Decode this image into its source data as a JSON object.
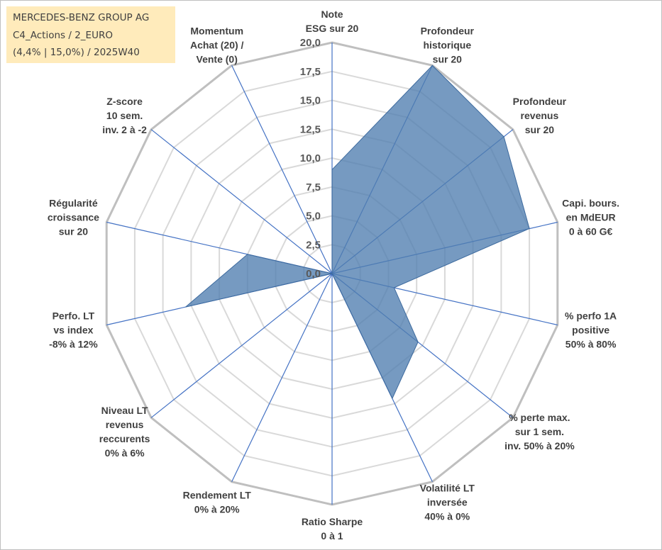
{
  "title": {
    "line1": "MERCEDES-BENZ GROUP AG",
    "line2": "C4_Actions / 2_EURO",
    "line3": "(4,4% | 15,0%) / 2025W40"
  },
  "colors": {
    "fill": "#4f7db0",
    "stroke": "#3d6a9e",
    "axis": "#4472c4",
    "grid": "#d9d9d9",
    "outer_grid": "#bfbfbf"
  },
  "chart_data": {
    "type": "radar",
    "scale_min": 0,
    "scale_max": 20,
    "tick_step": 2.5,
    "tick_labels": [
      "0,0",
      "2,5",
      "5,0",
      "7,5",
      "10,0",
      "12,5",
      "15,0",
      "17,5",
      "20,0"
    ],
    "axes": [
      {
        "label": [
          "Note",
          "ESG sur 20"
        ],
        "value": 9
      },
      {
        "label": [
          "Profondeur",
          "historique",
          "sur 20"
        ],
        "value": 20
      },
      {
        "label": [
          "Profondeur",
          "revenus",
          "sur 20"
        ],
        "value": 19
      },
      {
        "label": [
          "Capi. bours.",
          "en MdEUR",
          "0 à 60 G€"
        ],
        "value": 17.5
      },
      {
        "label": [
          "% perfo 1A",
          "positive",
          "50% à 80%"
        ],
        "value": 5.5
      },
      {
        "label": [
          "% perte max.",
          "sur 1 sem.",
          "inv. 50% à 20%"
        ],
        "value": 9.5
      },
      {
        "label": [
          "Volatilité LT",
          "inversée",
          "40% à 0%"
        ],
        "value": 12
      },
      {
        "label": [
          "Ratio Sharpe",
          "0 à 1"
        ],
        "value": 0
      },
      {
        "label": [
          "Rendement LT",
          "0% à 20%"
        ],
        "value": 0
      },
      {
        "label": [
          "Niveau LT",
          "revenus",
          "reccurents",
          "0% à 6%"
        ],
        "value": 0
      },
      {
        "label": [
          "Perfo. LT",
          "vs index",
          "-8% à 12%"
        ],
        "value": 13
      },
      {
        "label": [
          "Régularité",
          "croissance",
          "sur 20"
        ],
        "value": 7.5
      },
      {
        "label": [
          "Z-score",
          "10 sem.",
          "inv. 2 à -2"
        ],
        "value": 0
      },
      {
        "label": [
          "Momentum",
          "Achat (20) /",
          "Vente (0)"
        ],
        "value": 0
      }
    ]
  }
}
